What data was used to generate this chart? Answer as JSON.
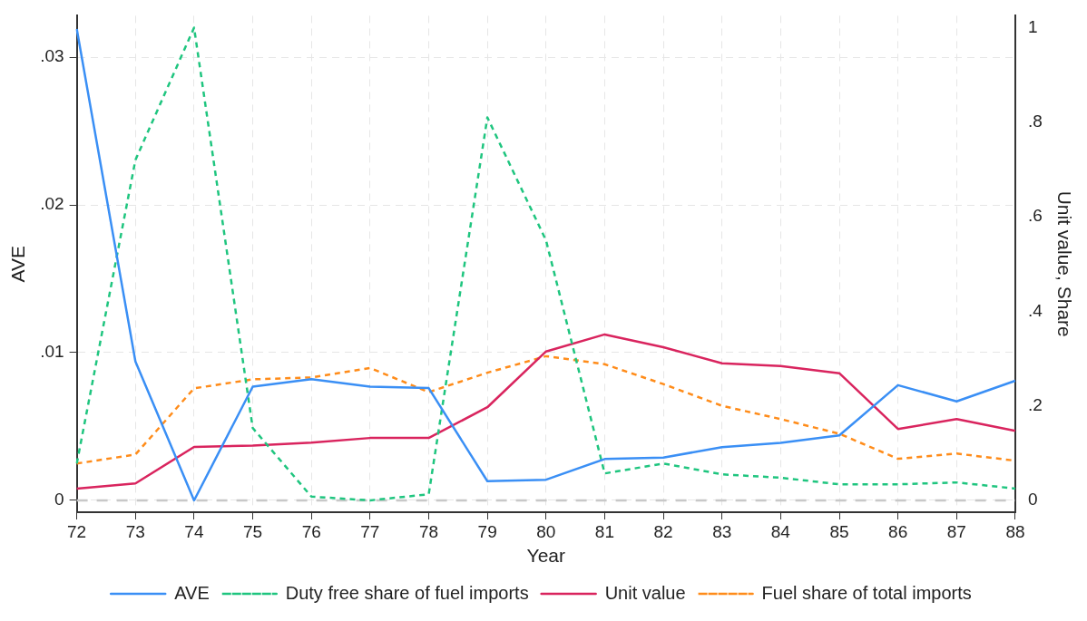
{
  "chart_data": {
    "type": "line",
    "xlabel": "Year",
    "ylabel": "AVE",
    "y2label": "Unit value, Share",
    "categories": [
      "72",
      "73",
      "74",
      "75",
      "76",
      "77",
      "78",
      "79",
      "80",
      "81",
      "82",
      "83",
      "84",
      "85",
      "86",
      "87",
      "88"
    ],
    "series": [
      {
        "name": "AVE",
        "color": "#3a8ff5",
        "line_style": "solid",
        "values": [
          0.0319,
          0.0094,
          0,
          0.0077,
          0.0082,
          0.0077,
          0.0076,
          0.0013,
          0.0014,
          0.0028,
          0.0029,
          0.0036,
          0.0039,
          0.0044,
          0.0078,
          0.0067,
          0.0081
        ]
      },
      {
        "name": "Duty free share of fuel imports",
        "color": "#1fc57f",
        "line_style": "dashed",
        "axis": "y2",
        "values": [
          0.078,
          0.72,
          1.0,
          0.153,
          0.008,
          0,
          0.013,
          0.81,
          0.55,
          0.057,
          0.078,
          0.055,
          0.048,
          0.034,
          0.034,
          0.038,
          0.025
        ]
      },
      {
        "name": "Unit value",
        "color": "#d9245e",
        "line_style": "solid",
        "axis": "y2",
        "values": [
          0.025,
          0.036,
          0.113,
          0.116,
          0.122,
          0.132,
          0.132,
          0.197,
          0.315,
          0.351,
          0.324,
          0.29,
          0.284,
          0.269,
          0.151,
          0.172,
          0.147
        ]
      },
      {
        "name": "Fuel share of total imports",
        "color": "#ff8c1a",
        "line_style": "dashed",
        "axis": "y2",
        "values": [
          0.078,
          0.097,
          0.237,
          0.256,
          0.26,
          0.28,
          0.229,
          0.27,
          0.305,
          0.288,
          0.246,
          0.2,
          0.172,
          0.141,
          0.088,
          0.099,
          0.084
        ]
      }
    ],
    "ylim": [
      -0.0008,
      0.0328
    ],
    "yticks": [
      {
        "value": 0,
        "label": "0"
      },
      {
        "value": 0.01,
        "label": ".01"
      },
      {
        "value": 0.02,
        "label": ".02"
      },
      {
        "value": 0.03,
        "label": ".03"
      }
    ],
    "y2lim": [
      -0.025,
      1.025
    ],
    "y2ticks": [
      {
        "value": 0,
        "label": "0"
      },
      {
        "value": 0.2,
        "label": ".2"
      },
      {
        "value": 0.4,
        "label": ".4"
      },
      {
        "value": 0.6,
        "label": ".6"
      },
      {
        "value": 0.8,
        "label": ".8"
      },
      {
        "value": 1,
        "label": "1"
      }
    ],
    "ref_lines": [
      {
        "axis": "y",
        "value": 0,
        "color": "#c8c8c8",
        "line_style": "dashed"
      }
    ],
    "grid": true,
    "legend": "bottom",
    "marker": "none"
  }
}
